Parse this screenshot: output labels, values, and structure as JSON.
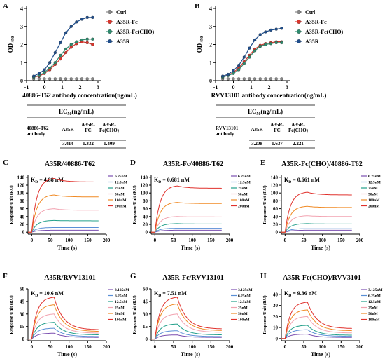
{
  "panels": {
    "A": {
      "letter": "A",
      "chart_data": {
        "type": "line",
        "xlabel": "40886-T62 antibody concentration(ng/mL)",
        "ylabel_main": "OD",
        "ylabel_sub": "450",
        "xlim": [
          -1,
          3
        ],
        "ylim": [
          0,
          4
        ],
        "xticks": [
          "-1",
          "0",
          "1",
          "2",
          "3"
        ],
        "yticks": [
          "0",
          "1",
          "2",
          "3",
          "4"
        ],
        "legend_position": "right",
        "series": [
          {
            "name": "Ctrl",
            "color": "#888888",
            "x": [
              -0.6,
              -0.3,
              0,
              0.3,
              0.6,
              0.9,
              1.2,
              1.5,
              1.8,
              2.1,
              2.4,
              2.7
            ],
            "y": [
              0.1,
              0.1,
              0.1,
              0.1,
              0.1,
              0.1,
              0.1,
              0.1,
              0.1,
              0.1,
              0.1,
              0.1
            ]
          },
          {
            "name": "A35R-Fc",
            "color": "#d9352c",
            "x": [
              -0.6,
              -0.3,
              0,
              0.3,
              0.6,
              0.9,
              1.2,
              1.5,
              1.8,
              2.1,
              2.4,
              2.7
            ],
            "y": [
              0.2,
              0.25,
              0.4,
              0.6,
              0.9,
              1.2,
              1.55,
              1.85,
              2.05,
              2.15,
              2.1,
              2.0
            ]
          },
          {
            "name": "A35R-Fc(CHO)",
            "color": "#2e8b6e",
            "x": [
              -0.6,
              -0.3,
              0,
              0.3,
              0.6,
              0.9,
              1.2,
              1.5,
              1.8,
              2.1,
              2.4,
              2.7
            ],
            "y": [
              0.2,
              0.28,
              0.45,
              0.7,
              1.0,
              1.4,
              1.75,
              2.0,
              2.15,
              2.25,
              2.3,
              2.3
            ]
          },
          {
            "name": "A35R",
            "color": "#1f4e8c",
            "x": [
              -0.6,
              -0.3,
              0,
              0.3,
              0.6,
              0.9,
              1.2,
              1.5,
              1.8,
              2.1,
              2.4,
              2.7
            ],
            "y": [
              0.25,
              0.4,
              0.6,
              1.0,
              1.55,
              2.1,
              2.65,
              3.0,
              3.25,
              3.4,
              3.5,
              3.5
            ]
          }
        ]
      },
      "table": {
        "header": "EC50(ng/mL)",
        "header_main": "EC",
        "header_sub": "50",
        "header_unit": "(ng/mL)",
        "row_label": [
          "40886-T62",
          "antibody"
        ],
        "cols": [
          [
            "A35R"
          ],
          [
            "A35R-",
            "FC"
          ],
          [
            "A35R-",
            "Fc(CHO)"
          ]
        ],
        "values": [
          "3.414",
          "1.332",
          "1.409"
        ]
      }
    },
    "B": {
      "letter": "B",
      "chart_data": {
        "type": "line",
        "xlabel": "RVV13101 antibody concentration(ng/mL)",
        "ylabel_main": "OD",
        "ylabel_sub": "450",
        "xlim": [
          -1,
          3
        ],
        "ylim": [
          0,
          4
        ],
        "xticks": [
          "-1",
          "0",
          "1",
          "2",
          "3"
        ],
        "yticks": [
          "0",
          "1",
          "2",
          "3",
          "4"
        ],
        "legend_position": "right",
        "series": [
          {
            "name": "Ctrl",
            "color": "#888888",
            "x": [
              -0.6,
              -0.3,
              0,
              0.3,
              0.6,
              0.9,
              1.2,
              1.5,
              1.8,
              2.1,
              2.4,
              2.7
            ],
            "y": [
              0.1,
              0.1,
              0.1,
              0.1,
              0.1,
              0.1,
              0.1,
              0.1,
              0.1,
              0.1,
              0.1,
              0.1
            ]
          },
          {
            "name": "A35R-Fc",
            "color": "#d9352c",
            "x": [
              -0.6,
              -0.3,
              0,
              0.3,
              0.6,
              0.9,
              1.2,
              1.5,
              1.8,
              2.1,
              2.4,
              2.7
            ],
            "y": [
              0.2,
              0.3,
              0.45,
              0.7,
              1.05,
              1.4,
              1.75,
              1.95,
              2.05,
              2.1,
              2.15,
              2.15
            ]
          },
          {
            "name": "A35R-Fc(CHO)",
            "color": "#2e8b6e",
            "x": [
              -0.6,
              -0.3,
              0,
              0.3,
              0.6,
              0.9,
              1.2,
              1.5,
              1.8,
              2.1,
              2.4,
              2.7
            ],
            "y": [
              0.2,
              0.28,
              0.4,
              0.6,
              0.95,
              1.3,
              1.65,
              1.9,
              2.0,
              2.05,
              2.1,
              2.1
            ]
          },
          {
            "name": "A35R",
            "color": "#1f4e8c",
            "x": [
              -0.6,
              -0.3,
              0,
              0.3,
              0.6,
              0.9,
              1.2,
              1.5,
              1.8,
              2.1,
              2.4,
              2.7
            ],
            "y": [
              0.25,
              0.35,
              0.55,
              0.85,
              1.3,
              1.8,
              2.25,
              2.55,
              2.7,
              2.8,
              2.85,
              2.9
            ]
          }
        ]
      },
      "table": {
        "header": "EC50(ng/mL)",
        "header_main": "EC",
        "header_sub": "50",
        "header_unit": "(ng/mL)",
        "row_label": [
          "RVV13101",
          "antibody"
        ],
        "cols": [
          [
            "A35R"
          ],
          [
            "A35R-",
            "FC"
          ],
          [
            "A35R-",
            "Fc(CHO)"
          ]
        ],
        "values": [
          "3.208",
          "1.637",
          "2.221"
        ]
      }
    }
  },
  "spr": [
    {
      "letter": "C",
      "title": "A35R/40886-T62",
      "kd_value": "4.88 nM",
      "chart_data": {
        "type": "line",
        "xlabel": "Time (s)",
        "ylabel": "Response Unit (RU)",
        "xlim": [
          -10,
          200
        ],
        "ylim": [
          -5,
          145
        ],
        "xticks": [
          "0",
          "50",
          "100",
          "150",
          "200"
        ],
        "yticks": [
          "0",
          "20",
          "40",
          "60",
          "80",
          "100",
          "120",
          "140"
        ],
        "assoc_end": 60,
        "series": [
          {
            "name": "6.25nM",
            "color": "#7b4fb0",
            "peak": 5,
            "plateau": 5
          },
          {
            "name": "12.5nM",
            "color": "#5a8fd6",
            "peak": 12,
            "plateau": 12
          },
          {
            "name": "25nM",
            "color": "#22a08a",
            "peak": 30,
            "plateau": 29
          },
          {
            "name": "50nM",
            "color": "#f2a2b0",
            "peak": 60,
            "plateau": 56
          },
          {
            "name": "100nM",
            "color": "#f08a24",
            "peak": 95,
            "plateau": 90
          },
          {
            "name": "200nM",
            "color": "#e0312c",
            "peak": 137,
            "plateau": 128
          }
        ]
      }
    },
    {
      "letter": "D",
      "title": "A35R-Fc/40886-T62",
      "kd_value": "0.681 nM",
      "chart_data": {
        "type": "line",
        "xlabel": "Time (s)",
        "ylabel": "Response Unit (RU)",
        "xlim": [
          -10,
          200
        ],
        "ylim": [
          -5,
          145
        ],
        "xticks": [
          "0",
          "50",
          "100",
          "150",
          "200"
        ],
        "yticks": [
          "0",
          "20",
          "40",
          "60",
          "80",
          "100",
          "120",
          "140"
        ],
        "assoc_end": 60,
        "series": [
          {
            "name": "6.25nM",
            "color": "#7b4fb0",
            "peak": 5,
            "plateau": 5
          },
          {
            "name": "12.5nM",
            "color": "#5a8fd6",
            "peak": 10,
            "plateau": 10
          },
          {
            "name": "25nM",
            "color": "#22a08a",
            "peak": 22,
            "plateau": 21
          },
          {
            "name": "50nM",
            "color": "#f2a2b0",
            "peak": 40,
            "plateau": 39
          },
          {
            "name": "100nM",
            "color": "#f08a24",
            "peak": 76,
            "plateau": 73
          },
          {
            "name": "200nM",
            "color": "#e0312c",
            "peak": 118,
            "plateau": 112
          }
        ]
      }
    },
    {
      "letter": "E",
      "title": "A35R-Fc(CHO)/40886-T62",
      "kd_value": "0.661 nM",
      "chart_data": {
        "type": "line",
        "xlabel": "Time (s)",
        "ylabel": "Response Unit (RU)",
        "xlim": [
          -10,
          200
        ],
        "ylim": [
          -5,
          145
        ],
        "xticks": [
          "0",
          "50",
          "100",
          "150",
          "200"
        ],
        "yticks": [
          "0",
          "20",
          "40",
          "60",
          "80",
          "100",
          "120",
          "140"
        ],
        "assoc_end": 60,
        "series": [
          {
            "name": "6.25nM",
            "color": "#7b4fb0",
            "peak": 5,
            "plateau": 5
          },
          {
            "name": "12.5nM",
            "color": "#5a8fd6",
            "peak": 9,
            "plateau": 9
          },
          {
            "name": "25nM",
            "color": "#22a08a",
            "peak": 22,
            "plateau": 21
          },
          {
            "name": "50nM",
            "color": "#f2a2b0",
            "peak": 42,
            "plateau": 40
          },
          {
            "name": "100nM",
            "color": "#f08a24",
            "peak": 66,
            "plateau": 63
          },
          {
            "name": "200nM",
            "color": "#e0312c",
            "peak": 102,
            "plateau": 95
          }
        ]
      }
    },
    {
      "letter": "F",
      "title": "A35R/RVV13101",
      "kd_value": "10.6 nM",
      "chart_data": {
        "type": "line",
        "xlabel": "Time (s)",
        "ylabel": "Response Unit (RU)",
        "xlim": [
          -10,
          200
        ],
        "ylim": [
          -2,
          60
        ],
        "xticks": [
          "0",
          "50",
          "100",
          "150",
          "200"
        ],
        "yticks": [
          "0",
          "15",
          "30",
          "45",
          "60"
        ],
        "assoc_end": 60,
        "series": [
          {
            "name": "3.125nM",
            "color": "#7b4fb0",
            "peak": 7,
            "plateau": 2
          },
          {
            "name": "6.25nM",
            "color": "#5a8fd6",
            "peak": 13,
            "plateau": 3
          },
          {
            "name": "12.5nM",
            "color": "#22a08a",
            "peak": 20,
            "plateau": 5
          },
          {
            "name": "25nM",
            "color": "#f2a2b0",
            "peak": 30,
            "plateau": 7
          },
          {
            "name": "50nM",
            "color": "#f08a24",
            "peak": 41,
            "plateau": 9
          },
          {
            "name": "100nM",
            "color": "#e0312c",
            "peak": 50,
            "plateau": 11
          }
        ]
      }
    },
    {
      "letter": "G",
      "title": "A35R-Fc/RVV13101",
      "kd_value": "7.51 nM",
      "chart_data": {
        "type": "line",
        "xlabel": "Time (s)",
        "ylabel": "Response Unit (RU)",
        "xlim": [
          -10,
          200
        ],
        "ylim": [
          -2,
          60
        ],
        "xticks": [
          "0",
          "50",
          "100",
          "150",
          "200"
        ],
        "yticks": [
          "0",
          "15",
          "30",
          "45",
          "60"
        ],
        "assoc_end": 60,
        "series": [
          {
            "name": "3.125nM",
            "color": "#7b4fb0",
            "peak": 5,
            "plateau": 2
          },
          {
            "name": "6.25nM",
            "color": "#5a8fd6",
            "peak": 10,
            "plateau": 3
          },
          {
            "name": "12.5nM",
            "color": "#22a08a",
            "peak": 18,
            "plateau": 5
          },
          {
            "name": "25nM",
            "color": "#f2a2b0",
            "peak": 30,
            "plateau": 8
          },
          {
            "name": "50nM",
            "color": "#f08a24",
            "peak": 42,
            "plateau": 10
          },
          {
            "name": "100nM",
            "color": "#e0312c",
            "peak": 50,
            "plateau": 12
          }
        ]
      }
    },
    {
      "letter": "H",
      "title": "A35R-Fc(CHO)/RVV3101",
      "kd_value": "9.36 nM",
      "chart_data": {
        "type": "line",
        "xlabel": "Time (s)",
        "ylabel": "Response Unit (RU)",
        "xlim": [
          -10,
          200
        ],
        "ylim": [
          -2,
          45
        ],
        "xticks": [
          "0",
          "50",
          "100",
          "150",
          "200"
        ],
        "yticks": [
          "0",
          "10",
          "20",
          "30",
          "40"
        ],
        "assoc_end": 60,
        "series": [
          {
            "name": "3.125nM",
            "color": "#7b4fb0",
            "peak": 4,
            "plateau": 1
          },
          {
            "name": "6.25nM",
            "color": "#5a8fd6",
            "peak": 8,
            "plateau": 2
          },
          {
            "name": "12.5nM",
            "color": "#22a08a",
            "peak": 12,
            "plateau": 3
          },
          {
            "name": "25nM",
            "color": "#f2a2b0",
            "peak": 20,
            "plateau": 5
          },
          {
            "name": "50nM",
            "color": "#f08a24",
            "peak": 26,
            "plateau": 7
          },
          {
            "name": "100nM",
            "color": "#e0312c",
            "peak": 33,
            "plateau": 9
          }
        ]
      }
    }
  ]
}
